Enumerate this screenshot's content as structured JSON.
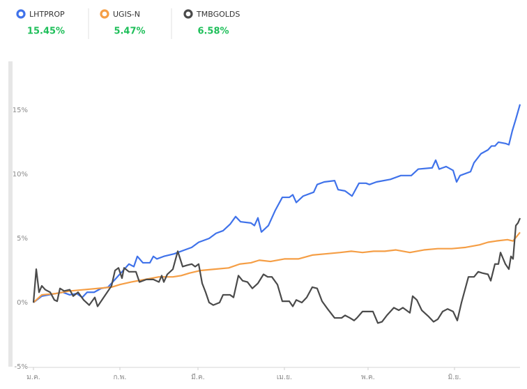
{
  "chart_data": {
    "type": "line",
    "series": [
      {
        "name": "LHTPROP",
        "change": "15.45%",
        "color": "#3f72ea",
        "x": [
          0,
          3,
          5.5,
          8,
          10.5,
          13,
          15.5,
          17.5,
          19.25,
          21.75,
          24.25,
          26.75,
          29.25,
          31.75,
          34.25,
          36,
          37.25,
          39.25,
          41.75,
          43,
          44.25,
          46.75,
          50.5,
          54.25,
          56.75,
          59.25,
          63,
          65.5,
          68,
          70.5,
          72.5,
          74.25,
          78,
          79.25,
          80.5,
          81.75,
          84.25,
          86.75,
          89.25,
          91.75,
          93,
          94.25,
          96.75,
          100.5,
          101.75,
          104.25,
          108,
          109.25,
          111.75,
          114.25,
          116.75,
          119.25,
          120.5,
          123,
          128,
          131.75,
          135.5,
          138,
          143,
          144.25,
          145.5,
          148,
          150.5,
          151.75,
          153,
          156.75,
          158,
          160.5,
          163,
          164.25,
          165.5,
          166.75,
          169.25,
          170.5,
          171.75,
          173,
          174.5
        ],
        "values": [
          0,
          0.5,
          0.6,
          0.7,
          0.8,
          0.6,
          0.7,
          0.4,
          0.8,
          0.8,
          1.1,
          1.2,
          1.8,
          2.4,
          3.0,
          2.8,
          3.6,
          3.1,
          3.1,
          3.6,
          3.4,
          3.6,
          3.8,
          4.1,
          4.3,
          4.7,
          5.0,
          5.4,
          5.6,
          6.1,
          6.7,
          6.3,
          6.2,
          6.0,
          6.6,
          5.5,
          6.0,
          7.2,
          8.2,
          8.2,
          8.4,
          7.8,
          8.3,
          8.6,
          9.2,
          9.4,
          9.5,
          8.8,
          8.7,
          8.3,
          9.3,
          9.3,
          9.2,
          9.4,
          9.6,
          9.9,
          9.9,
          10.4,
          10.5,
          11.1,
          10.4,
          10.6,
          10.3,
          9.4,
          9.9,
          10.2,
          10.9,
          11.6,
          11.9,
          12.2,
          12.2,
          12.5,
          12.4,
          12.3,
          13.4,
          14.3,
          15.45
        ]
      },
      {
        "name": "UGIS-N",
        "change": "5.47%",
        "color": "#f59e45",
        "x": [
          0,
          3,
          8,
          13,
          18,
          23,
          28,
          31,
          35,
          40,
          45,
          50,
          53,
          56,
          60,
          65,
          70,
          74,
          78,
          81,
          85,
          90,
          95,
          100,
          105,
          110,
          114,
          118,
          122,
          126,
          130,
          135,
          140,
          145,
          150,
          155,
          160,
          163,
          166,
          170,
          172,
          174.5
        ],
        "values": [
          0,
          0.6,
          0.7,
          0.9,
          1.0,
          1.1,
          1.2,
          1.4,
          1.6,
          1.8,
          2.0,
          2.0,
          2.1,
          2.3,
          2.5,
          2.6,
          2.7,
          3.0,
          3.1,
          3.3,
          3.2,
          3.4,
          3.4,
          3.7,
          3.8,
          3.9,
          4.0,
          3.9,
          4.0,
          4.0,
          4.1,
          3.9,
          4.1,
          4.2,
          4.2,
          4.3,
          4.5,
          4.7,
          4.8,
          4.9,
          4.8,
          5.47
        ]
      },
      {
        "name": "TMBGOLDS",
        "change": "6.58%",
        "color": "#4a4a4a",
        "x": [
          0,
          1,
          2,
          3,
          4.25,
          6,
          7.5,
          8.5,
          9.5,
          11,
          13,
          14.25,
          16,
          18,
          20,
          22,
          23,
          25.5,
          28,
          29.25,
          30.5,
          31.75,
          32.5,
          34.25,
          36.75,
          38,
          40.5,
          43,
          45,
          46,
          46.75,
          48,
          50,
          51.75,
          53.5,
          55,
          56.75,
          58,
          59.25,
          60.5,
          61.75,
          63,
          64.5,
          66.75,
          68,
          70.5,
          71.75,
          73.5,
          75,
          76.75,
          78.5,
          80.5,
          82.5,
          84,
          85.5,
          87.5,
          89.25,
          91.75,
          93,
          94.25,
          96.25,
          98,
          100,
          101.75,
          103.5,
          105.5,
          108,
          110.5,
          111.75,
          113.5,
          115,
          116,
          118,
          121.75,
          123.5,
          125,
          126.75,
          129.25,
          131,
          132.5,
          135,
          136,
          137.5,
          139.25,
          141.75,
          143.5,
          145,
          146.75,
          148.5,
          150.5,
          152,
          153.5,
          156,
          158,
          159.5,
          161,
          163,
          164,
          165.5,
          166.75,
          167.5,
          169.25,
          170.5,
          171.25,
          172,
          173,
          173.75,
          174.5
        ],
        "values": [
          0,
          2.6,
          0.8,
          1.3,
          1.0,
          0.8,
          0.2,
          0.1,
          1.1,
          0.9,
          1.0,
          0.5,
          0.8,
          0.2,
          -0.2,
          0.4,
          -0.3,
          0.5,
          1.3,
          2.5,
          2.7,
          1.9,
          2.7,
          2.4,
          2.4,
          1.6,
          1.8,
          1.8,
          1.6,
          2.1,
          1.6,
          2.2,
          2.6,
          4.0,
          2.8,
          2.9,
          3.0,
          2.8,
          3.0,
          1.5,
          0.8,
          0.0,
          -0.2,
          0.0,
          0.6,
          0.6,
          0.4,
          2.1,
          1.7,
          1.6,
          1.1,
          1.5,
          2.2,
          2.0,
          2.0,
          1.4,
          0.1,
          0.1,
          -0.3,
          0.2,
          0.0,
          0.4,
          1.2,
          1.1,
          0.1,
          -0.5,
          -1.2,
          -1.2,
          -1.0,
          -1.2,
          -1.4,
          -1.2,
          -0.7,
          -0.7,
          -1.6,
          -1.5,
          -1.0,
          -0.4,
          -0.6,
          -0.4,
          -0.8,
          0.5,
          0.2,
          -0.6,
          -1.1,
          -1.5,
          -1.3,
          -0.7,
          -0.5,
          -0.7,
          -1.4,
          0.0,
          2.0,
          2.0,
          2.4,
          2.3,
          2.2,
          1.7,
          3.0,
          3.0,
          3.9,
          3.0,
          2.6,
          3.6,
          3.4,
          6.0,
          6.2,
          6.58
        ]
      }
    ],
    "xlim": [
      0,
      174.5
    ],
    "xticks": [
      {
        "value": 0,
        "label": "ม.ค."
      },
      {
        "value": 31,
        "label": "ก.พ."
      },
      {
        "value": 59,
        "label": "มี.ค."
      },
      {
        "value": 90,
        "label": "เม.ย."
      },
      {
        "value": 120,
        "label": "พ.ค."
      },
      {
        "value": 151,
        "label": "มิ.ย."
      }
    ],
    "ylim": [
      -5,
      18.8
    ],
    "yticks": [
      {
        "value": -5,
        "label": "-5%"
      },
      {
        "value": 0,
        "label": "0%"
      },
      {
        "value": 5,
        "label": "5%"
      },
      {
        "value": 10,
        "label": "10%"
      },
      {
        "value": 15,
        "label": "15%"
      }
    ],
    "grid": false
  }
}
